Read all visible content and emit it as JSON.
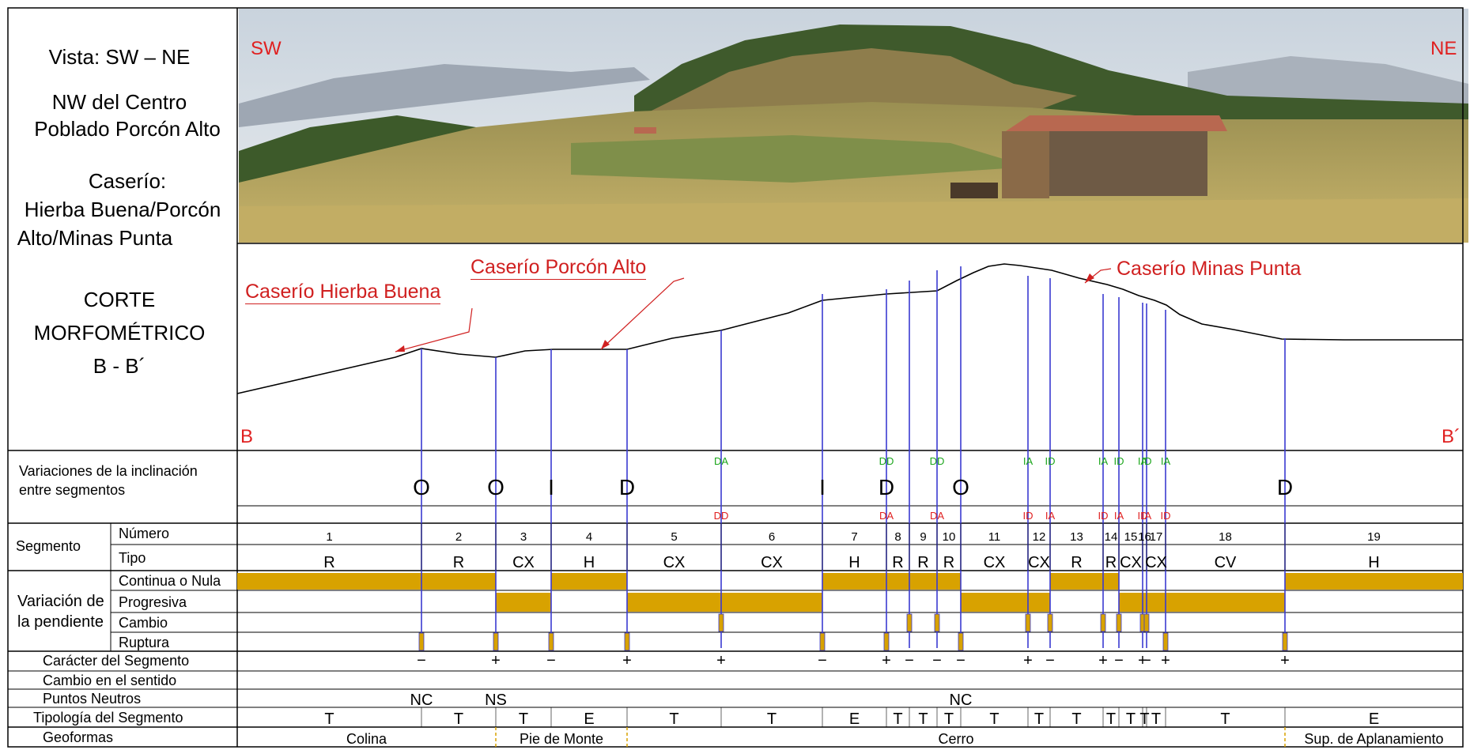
{
  "header": {
    "vista": "Vista: SW – NE",
    "location_line1": "NW del Centro",
    "location_line2": "Poblado Porcón Alto",
    "caserio_label": "Caserío:",
    "caserio_line1": "Hierba Buena/Porcón",
    "caserio_line2": "Alto/Minas Punta",
    "corte_line1": "CORTE",
    "corte_line2": "MORFOMÉTRICO",
    "corte_line3": "B - B´"
  },
  "photo": {
    "left_label": "SW",
    "right_label": "NE"
  },
  "profile": {
    "start_label": "B",
    "end_label": "B´",
    "callouts": [
      "Caserío Hierba Buena",
      "Caserío Porcón Alto",
      "Caserío Minas Punta"
    ]
  },
  "row_labels": {
    "variaciones_line1": "Variaciones de la inclinación",
    "variaciones_line2": "entre segmentos",
    "segmento": "Segmento",
    "numero": "Número",
    "tipo": "Tipo",
    "variacion_line1": "Variación de",
    "variacion_line2": "la pendiente",
    "continua": "Continua o Nula",
    "progresiva": "Progresiva",
    "cambio": "Cambio",
    "ruptura": "Ruptura",
    "caracter": "Carácter del Segmento",
    "cambio_sentido": "Cambio en el sentido",
    "puntos_neutros": "Puntos Neutros",
    "tipologia": "Tipología del Segmento",
    "geoformas": "Geoformas"
  },
  "boundaries": [
    {
      "letter": "O",
      "top": "",
      "bottom": "",
      "caracter": "−",
      "rate": "ruptura"
    },
    {
      "letter": "O",
      "top": "",
      "bottom": "",
      "caracter": "+",
      "rate": "ruptura"
    },
    {
      "letter": "I",
      "top": "",
      "bottom": "",
      "caracter": "−",
      "rate": "ruptura"
    },
    {
      "letter": "D",
      "top": "",
      "bottom": "",
      "caracter": "+",
      "rate": "ruptura"
    },
    {
      "letter": "",
      "top": "DA",
      "bottom": "DD",
      "caracter": "+",
      "rate": "cambio"
    },
    {
      "letter": "I",
      "top": "",
      "bottom": "",
      "caracter": "−",
      "rate": "ruptura"
    },
    {
      "letter": "D",
      "top": "DD",
      "bottom": "DA",
      "caracter": "+",
      "rate": "ruptura"
    },
    {
      "letter": "",
      "top": "",
      "bottom": "",
      "caracter": "−",
      "rate": "cambio"
    },
    {
      "letter": "",
      "top": "DD",
      "bottom": "DA",
      "caracter": "−",
      "rate": "cambio"
    },
    {
      "letter": "O",
      "top": "",
      "bottom": "",
      "caracter": "−",
      "rate": "ruptura"
    },
    {
      "letter": "",
      "top": "IA",
      "bottom": "ID",
      "caracter": "+",
      "rate": "cambio"
    },
    {
      "letter": "",
      "top": "ID",
      "bottom": "IA",
      "caracter": "−",
      "rate": "cambio"
    },
    {
      "letter": "",
      "top": "IA",
      "bottom": "ID",
      "caracter": "+",
      "rate": "cambio"
    },
    {
      "letter": "",
      "top": "ID",
      "bottom": "IA",
      "caracter": "−",
      "rate": "cambio"
    },
    {
      "letter": "",
      "top": "IA",
      "bottom": "ID",
      "caracter": "+",
      "rate": "cambio"
    },
    {
      "letter": "",
      "top": "ID",
      "bottom": "IA",
      "caracter": "−",
      "rate": "cambio"
    },
    {
      "letter": "",
      "top": "IA",
      "bottom": "ID",
      "caracter": "+",
      "rate": "ruptura"
    },
    {
      "letter": "D",
      "top": "",
      "bottom": "",
      "caracter": "+",
      "rate": "ruptura"
    }
  ],
  "segments": [
    {
      "num": "1",
      "tipo": "R",
      "tipologia": "T",
      "pendiente": "continua"
    },
    {
      "num": "2",
      "tipo": "R",
      "tipologia": "T",
      "pendiente": "continua"
    },
    {
      "num": "3",
      "tipo": "CX",
      "tipologia": "T",
      "pendiente": "progresiva"
    },
    {
      "num": "4",
      "tipo": "H",
      "tipologia": "E",
      "pendiente": "continua"
    },
    {
      "num": "5",
      "tipo": "CX",
      "tipologia": "T",
      "pendiente": "progresiva"
    },
    {
      "num": "6",
      "tipo": "CX",
      "tipologia": "T",
      "pendiente": "progresiva"
    },
    {
      "num": "7",
      "tipo": "H",
      "tipologia": "E",
      "pendiente": "continua"
    },
    {
      "num": "8",
      "tipo": "R",
      "tipologia": "T",
      "pendiente": "continua"
    },
    {
      "num": "9",
      "tipo": "R",
      "tipologia": "T",
      "pendiente": "continua"
    },
    {
      "num": "10",
      "tipo": "R",
      "tipologia": "T",
      "pendiente": "continua"
    },
    {
      "num": "11",
      "tipo": "CX",
      "tipologia": "T",
      "pendiente": "progresiva"
    },
    {
      "num": "12",
      "tipo": "CX",
      "tipologia": "T",
      "pendiente": "progresiva"
    },
    {
      "num": "13",
      "tipo": "R",
      "tipologia": "T",
      "pendiente": "continua"
    },
    {
      "num": "14",
      "tipo": "R",
      "tipologia": "T",
      "pendiente": "continua"
    },
    {
      "num": "15",
      "tipo": "CX",
      "tipologia": "T",
      "pendiente": "progresiva"
    },
    {
      "num": "16",
      "tipo": "",
      "tipologia": "T",
      "pendiente": "progresiva"
    },
    {
      "num": "17",
      "tipo": "CX",
      "tipologia": "T",
      "pendiente": "progresiva"
    },
    {
      "num": "18",
      "tipo": "CV",
      "tipologia": "T",
      "pendiente": "progresiva"
    },
    {
      "num": "19",
      "tipo": "H",
      "tipologia": "E",
      "pendiente": "continua"
    }
  ],
  "neutral_points": [
    {
      "label": "NC",
      "at_boundary": 0
    },
    {
      "label": "NS",
      "at_boundary": 1
    },
    {
      "label": "NC",
      "at_boundary": 9
    }
  ],
  "geoformas": [
    {
      "label": "Colina",
      "from_boundary": -1,
      "to_boundary": 1
    },
    {
      "label": "Pie de Monte",
      "from_boundary": 1,
      "to_boundary": 3
    },
    {
      "label": "Cerro",
      "from_boundary": 3,
      "to_boundary": 17
    },
    {
      "label": "Sup. de Aplanamiento",
      "from_boundary": 17,
      "to_boundary": 18
    }
  ],
  "colors": {
    "boundary_line": "#3a3ad0",
    "bar_fill": "#d8a200",
    "accent_red": "#e02020",
    "accent_green": "#1aa51a",
    "grid": "#000000"
  }
}
